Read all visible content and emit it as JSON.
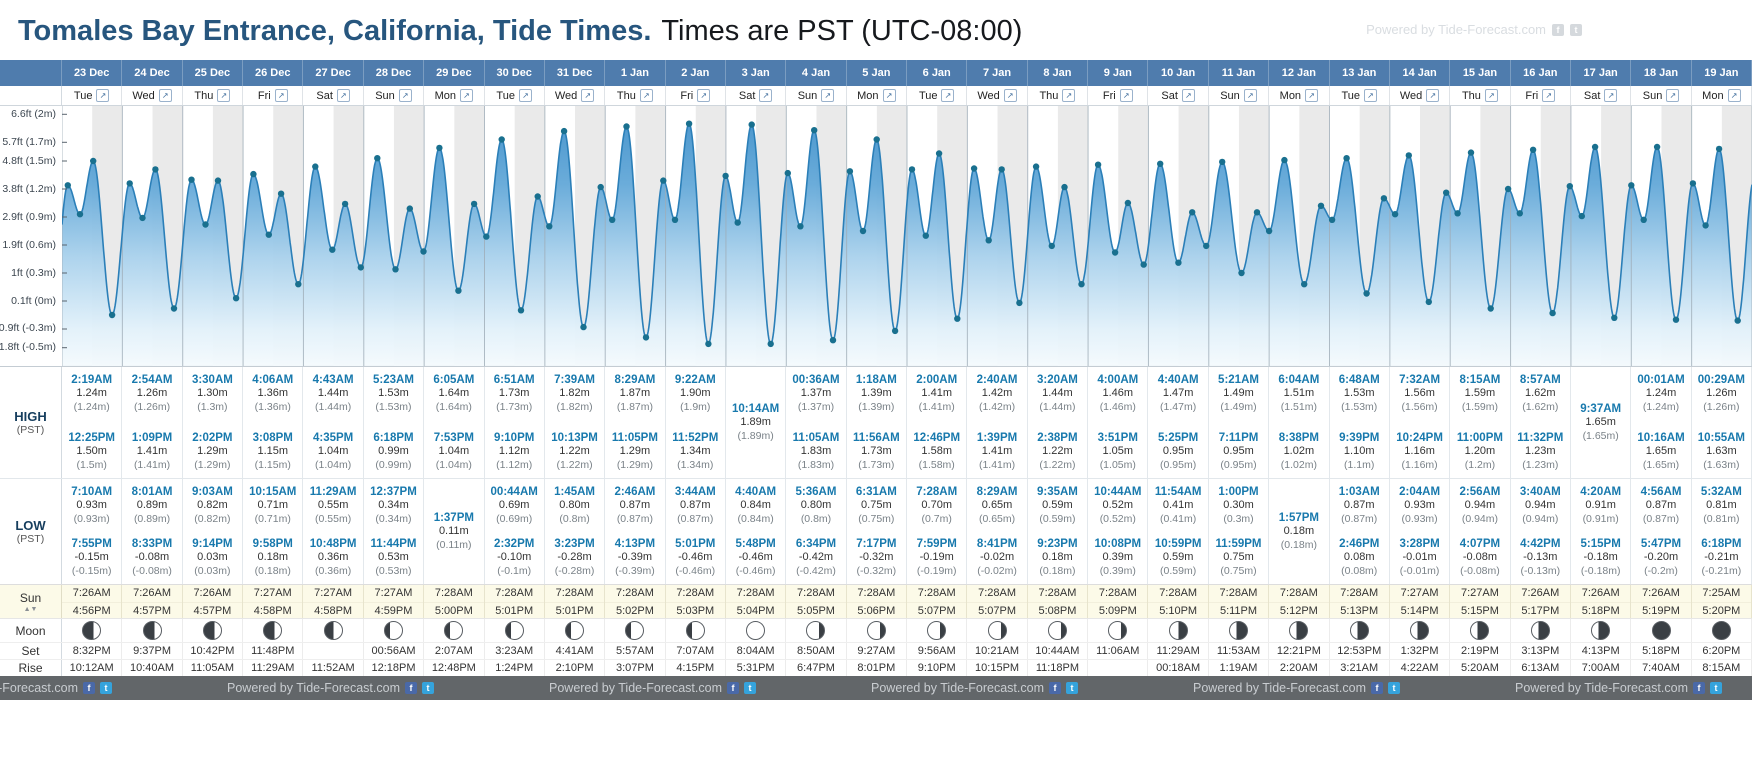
{
  "title": {
    "main": "Tomales Bay Entrance, California, Tide Times.",
    "sub": "Times are PST (UTC-08:00)"
  },
  "watermark": {
    "text": "Powered by Tide-Forecast.com"
  },
  "labels": {
    "high": "HIGH",
    "low": "LOW",
    "pst": "(PST)",
    "sun": "Sun",
    "moon": "Moon",
    "set": "Set",
    "rise": "Rise"
  },
  "colors": {
    "header_blue": "#4f7cad",
    "tide_time_teal": "#1879ad",
    "curve_blue": "#2b7fb8",
    "dot_teal": "#19708f",
    "title_navy": "#27567e"
  },
  "chart_data": {
    "type": "area",
    "value_unit": "m",
    "x_unit": "days",
    "grid": "half-day alternating stripes",
    "y_ticks": [
      {
        "m": 2,
        "label": "6.6ft (2m)"
      },
      {
        "m": 1.7,
        "label": "5.7ft (1.7m)"
      },
      {
        "m": 1.5,
        "label": "4.8ft (1.5m)"
      },
      {
        "m": 1.2,
        "label": "3.8ft (1.2m)"
      },
      {
        "m": 0.9,
        "label": "2.9ft (0.9m)"
      },
      {
        "m": 0.6,
        "label": "1.9ft (0.6m)"
      },
      {
        "m": 0.3,
        "label": "1ft (0.3m)"
      },
      {
        "m": 0,
        "label": "0.1ft (0m)"
      },
      {
        "m": -0.3,
        "label": "-0.9ft (-0.3m)"
      },
      {
        "m": -0.5,
        "label": "-1.8ft (-0.5m)"
      }
    ],
    "days": [
      {
        "date": "23 Dec",
        "weekday": "Tue",
        "events": [
          [
            "H",
            "2:19AM",
            1.24
          ],
          [
            "L",
            "7:10AM",
            0.93
          ],
          [
            "H",
            "12:25PM",
            1.5
          ],
          [
            "L",
            "7:55PM",
            -0.15
          ]
        ]
      },
      {
        "date": "24 Dec",
        "weekday": "Wed",
        "events": [
          [
            "H",
            "2:54AM",
            1.26
          ],
          [
            "L",
            "8:01AM",
            0.89
          ],
          [
            "H",
            "1:09PM",
            1.41
          ],
          [
            "L",
            "8:33PM",
            -0.08
          ]
        ]
      },
      {
        "date": "25 Dec",
        "weekday": "Thu",
        "events": [
          [
            "H",
            "3:30AM",
            1.3
          ],
          [
            "L",
            "9:03AM",
            0.82
          ],
          [
            "H",
            "2:02PM",
            1.29
          ],
          [
            "L",
            "9:14PM",
            0.03
          ]
        ]
      },
      {
        "date": "26 Dec",
        "weekday": "Fri",
        "events": [
          [
            "H",
            "4:06AM",
            1.36
          ],
          [
            "L",
            "10:15AM",
            0.71
          ],
          [
            "H",
            "3:08PM",
            1.15
          ],
          [
            "L",
            "9:58PM",
            0.18
          ]
        ]
      },
      {
        "date": "27 Dec",
        "weekday": "Sat",
        "events": [
          [
            "H",
            "4:43AM",
            1.44
          ],
          [
            "L",
            "11:29AM",
            0.55
          ],
          [
            "H",
            "4:35PM",
            1.04
          ],
          [
            "L",
            "10:48PM",
            0.36
          ]
        ]
      },
      {
        "date": "28 Dec",
        "weekday": "Sun",
        "events": [
          [
            "H",
            "5:23AM",
            1.53
          ],
          [
            "L",
            "12:37PM",
            0.34
          ],
          [
            "H",
            "6:18PM",
            0.99
          ],
          [
            "L",
            "11:44PM",
            0.53
          ]
        ]
      },
      {
        "date": "29 Dec",
        "weekday": "Mon",
        "events": [
          [
            "H",
            "6:05AM",
            1.64
          ],
          [
            "L",
            "1:37PM",
            0.11
          ],
          [
            "H",
            "7:53PM",
            1.04
          ]
        ]
      },
      {
        "date": "30 Dec",
        "weekday": "Tue",
        "events": [
          [
            "L",
            "00:44AM",
            0.69
          ],
          [
            "H",
            "6:51AM",
            1.73
          ],
          [
            "L",
            "2:32PM",
            -0.1
          ],
          [
            "H",
            "9:10PM",
            1.12
          ]
        ]
      },
      {
        "date": "31 Dec",
        "weekday": "Wed",
        "events": [
          [
            "L",
            "1:45AM",
            0.8
          ],
          [
            "H",
            "7:39AM",
            1.82
          ],
          [
            "L",
            "3:23PM",
            -0.28
          ],
          [
            "H",
            "10:13PM",
            1.22
          ]
        ]
      },
      {
        "date": "1 Jan",
        "weekday": "Thu",
        "events": [
          [
            "L",
            "2:46AM",
            0.87
          ],
          [
            "H",
            "8:29AM",
            1.87
          ],
          [
            "L",
            "4:13PM",
            -0.39
          ],
          [
            "H",
            "11:05PM",
            1.29
          ]
        ]
      },
      {
        "date": "2 Jan",
        "weekday": "Fri",
        "events": [
          [
            "L",
            "3:44AM",
            0.87
          ],
          [
            "H",
            "9:22AM",
            1.9
          ],
          [
            "L",
            "5:01PM",
            -0.46
          ],
          [
            "H",
            "11:52PM",
            1.34
          ]
        ]
      },
      {
        "date": "3 Jan",
        "weekday": "Sat",
        "events": [
          [
            "L",
            "4:40AM",
            0.84
          ],
          [
            "H",
            "10:14AM",
            1.89
          ],
          [
            "L",
            "5:48PM",
            -0.46
          ]
        ]
      },
      {
        "date": "4 Jan",
        "weekday": "Sun",
        "events": [
          [
            "H",
            "00:36AM",
            1.37
          ],
          [
            "L",
            "5:36AM",
            0.8
          ],
          [
            "H",
            "11:05AM",
            1.83
          ],
          [
            "L",
            "6:34PM",
            -0.42
          ]
        ]
      },
      {
        "date": "5 Jan",
        "weekday": "Mon",
        "events": [
          [
            "H",
            "1:18AM",
            1.39
          ],
          [
            "L",
            "6:31AM",
            0.75
          ],
          [
            "H",
            "11:56AM",
            1.73
          ],
          [
            "L",
            "7:17PM",
            -0.32
          ]
        ]
      },
      {
        "date": "6 Jan",
        "weekday": "Tue",
        "events": [
          [
            "H",
            "2:00AM",
            1.41
          ],
          [
            "L",
            "7:28AM",
            0.7
          ],
          [
            "H",
            "12:46PM",
            1.58
          ],
          [
            "L",
            "7:59PM",
            -0.19
          ]
        ]
      },
      {
        "date": "7 Jan",
        "weekday": "Wed",
        "events": [
          [
            "H",
            "2:40AM",
            1.42
          ],
          [
            "L",
            "8:29AM",
            0.65
          ],
          [
            "H",
            "1:39PM",
            1.41
          ],
          [
            "L",
            "8:41PM",
            -0.02
          ]
        ]
      },
      {
        "date": "8 Jan",
        "weekday": "Thu",
        "events": [
          [
            "H",
            "3:20AM",
            1.44
          ],
          [
            "L",
            "9:35AM",
            0.59
          ],
          [
            "H",
            "2:38PM",
            1.22
          ],
          [
            "L",
            "9:23PM",
            0.18
          ]
        ]
      },
      {
        "date": "9 Jan",
        "weekday": "Fri",
        "events": [
          [
            "H",
            "4:00AM",
            1.46
          ],
          [
            "L",
            "10:44AM",
            0.52
          ],
          [
            "H",
            "3:51PM",
            1.05
          ],
          [
            "L",
            "10:08PM",
            0.39
          ]
        ]
      },
      {
        "date": "10 Jan",
        "weekday": "Sat",
        "events": [
          [
            "H",
            "4:40AM",
            1.47
          ],
          [
            "L",
            "11:54AM",
            0.41
          ],
          [
            "H",
            "5:25PM",
            0.95
          ],
          [
            "L",
            "10:59PM",
            0.59
          ]
        ]
      },
      {
        "date": "11 Jan",
        "weekday": "Sun",
        "events": [
          [
            "H",
            "5:21AM",
            1.49
          ],
          [
            "L",
            "1:00PM",
            0.3
          ],
          [
            "H",
            "7:11PM",
            0.95
          ],
          [
            "L",
            "11:59PM",
            0.75
          ]
        ]
      },
      {
        "date": "12 Jan",
        "weekday": "Mon",
        "events": [
          [
            "H",
            "6:04AM",
            1.51
          ],
          [
            "L",
            "1:57PM",
            0.18
          ],
          [
            "H",
            "8:38PM",
            1.02
          ]
        ]
      },
      {
        "date": "13 Jan",
        "weekday": "Tue",
        "events": [
          [
            "L",
            "1:03AM",
            0.87
          ],
          [
            "H",
            "6:48AM",
            1.53
          ],
          [
            "L",
            "2:46PM",
            0.08
          ],
          [
            "H",
            "9:39PM",
            1.1
          ]
        ]
      },
      {
        "date": "14 Jan",
        "weekday": "Wed",
        "events": [
          [
            "L",
            "2:04AM",
            0.93
          ],
          [
            "H",
            "7:32AM",
            1.56
          ],
          [
            "L",
            "3:28PM",
            -0.01
          ],
          [
            "H",
            "10:24PM",
            1.16
          ]
        ]
      },
      {
        "date": "15 Jan",
        "weekday": "Thu",
        "events": [
          [
            "L",
            "2:56AM",
            0.94
          ],
          [
            "H",
            "8:15AM",
            1.59
          ],
          [
            "L",
            "4:07PM",
            -0.08
          ],
          [
            "H",
            "11:00PM",
            1.2
          ]
        ]
      },
      {
        "date": "16 Jan",
        "weekday": "Fri",
        "events": [
          [
            "L",
            "3:40AM",
            0.94
          ],
          [
            "H",
            "8:57AM",
            1.62
          ],
          [
            "L",
            "4:42PM",
            -0.13
          ],
          [
            "H",
            "11:32PM",
            1.23
          ]
        ]
      },
      {
        "date": "17 Jan",
        "weekday": "Sat",
        "events": [
          [
            "L",
            "4:20AM",
            0.91
          ],
          [
            "H",
            "9:37AM",
            1.65
          ],
          [
            "L",
            "5:15PM",
            -0.18
          ]
        ]
      },
      {
        "date": "18 Jan",
        "weekday": "Sun",
        "events": [
          [
            "H",
            "00:01AM",
            1.24
          ],
          [
            "L",
            "4:56AM",
            0.87
          ],
          [
            "H",
            "10:16AM",
            1.65
          ],
          [
            "L",
            "5:47PM",
            -0.2
          ]
        ]
      },
      {
        "date": "19 Jan",
        "weekday": "Mon",
        "events": [
          [
            "H",
            "00:29AM",
            1.26
          ],
          [
            "L",
            "5:32AM",
            0.81
          ],
          [
            "H",
            "10:55AM",
            1.63
          ],
          [
            "L",
            "6:18PM",
            -0.21
          ]
        ]
      }
    ]
  },
  "sun_moon": {
    "sunrise": [
      "7:26AM",
      "7:26AM",
      "7:26AM",
      "7:27AM",
      "7:27AM",
      "7:27AM",
      "7:28AM",
      "7:28AM",
      "7:28AM",
      "7:28AM",
      "7:28AM",
      "7:28AM",
      "7:28AM",
      "7:28AM",
      "7:28AM",
      "7:28AM",
      "7:28AM",
      "7:28AM",
      "7:28AM",
      "7:28AM",
      "7:28AM",
      "7:28AM",
      "7:27AM",
      "7:27AM",
      "7:26AM",
      "7:26AM",
      "7:26AM",
      "7:25AM"
    ],
    "sunset": [
      "4:56PM",
      "4:57PM",
      "4:57PM",
      "4:58PM",
      "4:58PM",
      "4:59PM",
      "5:00PM",
      "5:01PM",
      "5:01PM",
      "5:02PM",
      "5:03PM",
      "5:04PM",
      "5:05PM",
      "5:06PM",
      "5:07PM",
      "5:07PM",
      "5:08PM",
      "5:09PM",
      "5:10PM",
      "5:11PM",
      "5:12PM",
      "5:13PM",
      "5:14PM",
      "5:15PM",
      "5:17PM",
      "5:18PM",
      "5:19PM",
      "5:20PM"
    ],
    "moon_phase": [
      "waxing-crescent",
      "waxing-crescent",
      "waxing-crescent",
      "waxing-crescent",
      "first-quarter",
      "waxing-gibbous",
      "waxing-gibbous",
      "waxing-gibbous",
      "waxing-gibbous",
      "waxing-gibbous",
      "waxing-gibbous",
      "full",
      "waning-gibbous",
      "waning-gibbous",
      "waning-gibbous",
      "waning-gibbous",
      "waning-gibbous",
      "waning-gibbous",
      "last-quarter",
      "waning-crescent",
      "waning-crescent",
      "waning-crescent",
      "waning-crescent",
      "waning-crescent",
      "waning-crescent",
      "waning-crescent",
      "new",
      "new"
    ],
    "moonset": [
      "8:32PM",
      "9:37PM",
      "10:42PM",
      "11:48PM",
      "",
      "00:56AM",
      "2:07AM",
      "3:23AM",
      "4:41AM",
      "5:57AM",
      "7:07AM",
      "8:04AM",
      "8:50AM",
      "9:27AM",
      "9:56AM",
      "10:21AM",
      "10:44AM",
      "11:06AM",
      "11:29AM",
      "11:53AM",
      "12:21PM",
      "12:53PM",
      "1:32PM",
      "2:19PM",
      "3:13PM",
      "4:13PM",
      "5:18PM",
      "6:20PM"
    ],
    "moonrise": [
      "10:12AM",
      "10:40AM",
      "11:05AM",
      "11:29AM",
      "11:52AM",
      "12:18PM",
      "12:48PM",
      "1:24PM",
      "2:10PM",
      "3:07PM",
      "4:15PM",
      "5:31PM",
      "6:47PM",
      "8:01PM",
      "9:10PM",
      "10:15PM",
      "11:18PM",
      "",
      "00:18AM",
      "1:19AM",
      "2:20AM",
      "3:21AM",
      "4:22AM",
      "5:20AM",
      "6:13AM",
      "7:00AM",
      "7:40AM",
      "8:15AM"
    ]
  }
}
